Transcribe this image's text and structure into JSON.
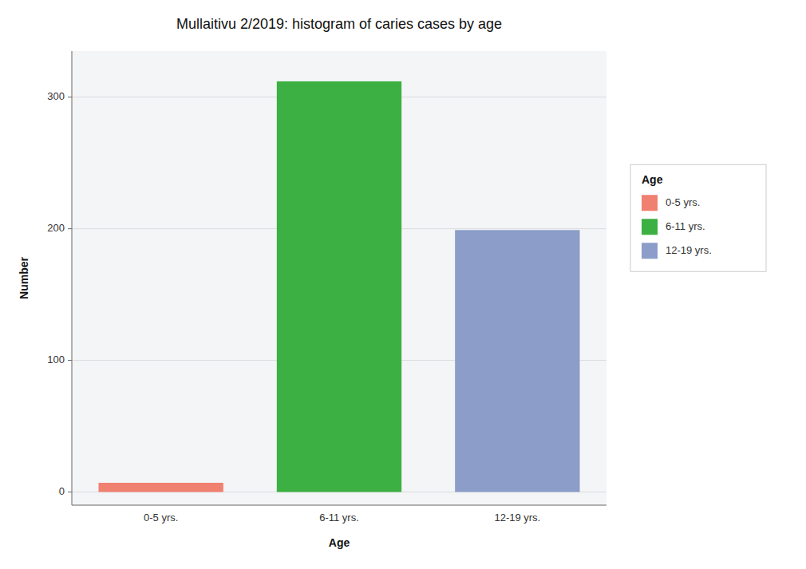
{
  "chart_data": {
    "type": "bar",
    "title": "Mullaitivu 2/2019: histogram of caries cases by age",
    "xlabel": "Age",
    "ylabel": "Number",
    "categories": [
      "0-5 yrs.",
      "6-11 yrs.",
      "12-19 yrs."
    ],
    "values": [
      7,
      312,
      199
    ],
    "colors": [
      "#F08070",
      "#3CB042",
      "#8B9DC8"
    ],
    "ylim": [
      -10,
      335
    ],
    "yticks": [
      0,
      100,
      200,
      300
    ],
    "grid": true,
    "legend": "right",
    "legend_title": "Age"
  }
}
